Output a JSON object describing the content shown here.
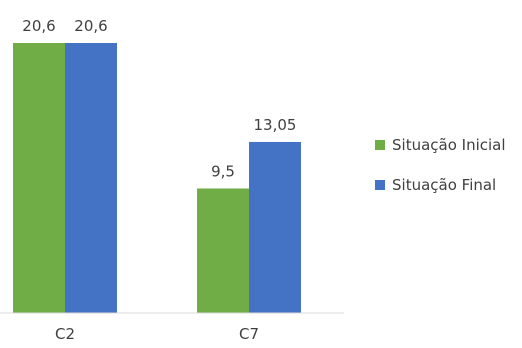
{
  "chart_data": {
    "type": "bar",
    "categories": [
      "C2",
      "C7"
    ],
    "series": [
      {
        "name": "Situação Inicial",
        "values": [
          20.6,
          9.5
        ],
        "labels": [
          "20,6",
          "9,5"
        ],
        "color": "#70AD47"
      },
      {
        "name": "Situação Final",
        "values": [
          20.6,
          13.05
        ],
        "labels": [
          "20,6",
          "13,05"
        ],
        "color": "#4472C4"
      }
    ],
    "title": "",
    "xlabel": "",
    "ylabel": "",
    "ylim": [
      0,
      20.6
    ],
    "grid": false,
    "legend_position": "right",
    "axis_color": "#d9d9d9"
  }
}
